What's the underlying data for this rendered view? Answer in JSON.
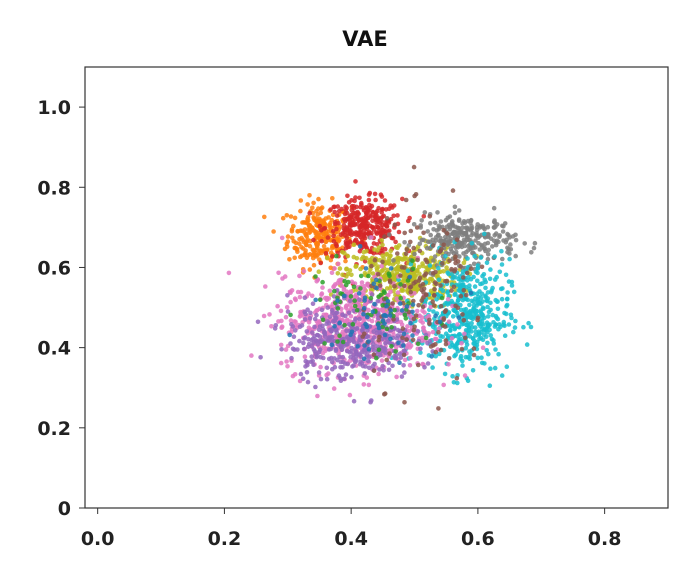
{
  "chart_data": {
    "type": "scatter",
    "title": "VAE",
    "xlabel": "",
    "ylabel": "",
    "xlim": [
      -0.02,
      0.9
    ],
    "ylim": [
      0.0,
      1.1
    ],
    "x_ticks": [
      0.0,
      0.2,
      0.4,
      0.6,
      0.8
    ],
    "x_tick_labels": [
      "0.0",
      "0.2",
      "0.4",
      "0.6",
      "0.8"
    ],
    "y_ticks": [
      0.0,
      0.2,
      0.4,
      0.6,
      0.8,
      1.0
    ],
    "y_tick_labels": [
      "0",
      "0.2",
      "0.4",
      "0.6",
      "0.8",
      "1.0"
    ],
    "grid": false,
    "legend": "none",
    "series": [
      {
        "color": "#ff7f0e",
        "center": [
          0.35,
          0.68
        ],
        "spread": [
          0.025,
          0.04
        ],
        "count": 260
      },
      {
        "color": "#d62728",
        "center": [
          0.42,
          0.7
        ],
        "spread": [
          0.03,
          0.035
        ],
        "count": 320
      },
      {
        "color": "#bcbd22",
        "center": [
          0.48,
          0.58
        ],
        "spread": [
          0.045,
          0.04
        ],
        "count": 400
      },
      {
        "color": "#7f7f7f",
        "center": [
          0.58,
          0.67
        ],
        "spread": [
          0.04,
          0.03
        ],
        "count": 280
      },
      {
        "color": "#17becf",
        "center": [
          0.58,
          0.48
        ],
        "spread": [
          0.035,
          0.07
        ],
        "count": 460
      },
      {
        "color": "#e377c2",
        "center": [
          0.41,
          0.46
        ],
        "spread": [
          0.06,
          0.06
        ],
        "count": 650
      },
      {
        "color": "#9467bd",
        "center": [
          0.4,
          0.42
        ],
        "spread": [
          0.05,
          0.05
        ],
        "count": 380
      },
      {
        "color": "#8c564b",
        "center": [
          0.52,
          0.52
        ],
        "spread": [
          0.05,
          0.1
        ],
        "count": 160
      },
      {
        "color": "#2ca02c",
        "center": [
          0.43,
          0.5
        ],
        "spread": [
          0.05,
          0.06
        ],
        "count": 70
      },
      {
        "color": "#1f77b4",
        "center": [
          0.44,
          0.5
        ],
        "spread": [
          0.05,
          0.06
        ],
        "count": 60
      }
    ]
  }
}
